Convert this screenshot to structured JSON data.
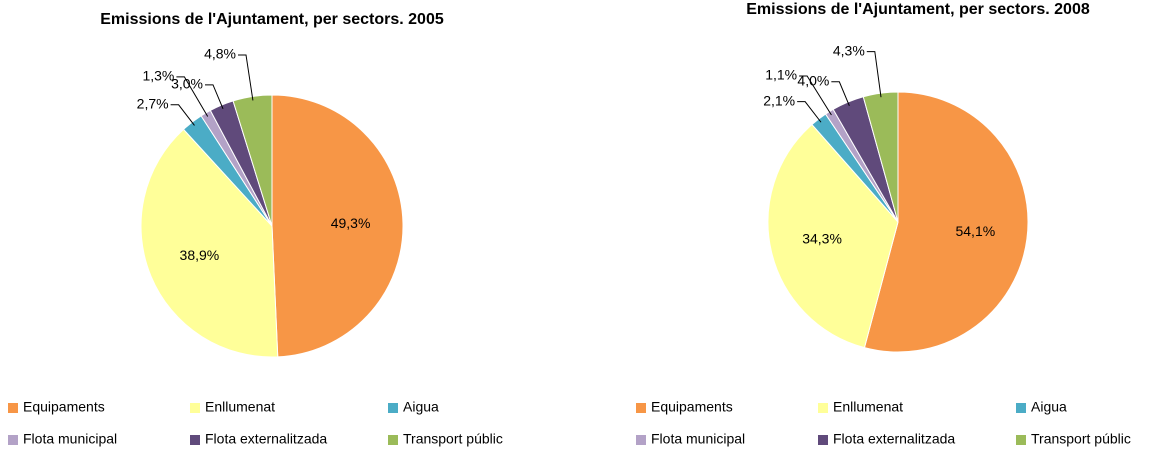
{
  "chart_data": [
    {
      "type": "pie",
      "title": "Emissions de l'Ajuntament, per sectors. 2005",
      "categories": [
        "Equipaments",
        "Enllumenat",
        "Aigua",
        "Flota municipal",
        "Flota externalitzada",
        "Transport públic"
      ],
      "values": [
        49.3,
        38.9,
        2.7,
        1.3,
        3.0,
        4.8
      ],
      "value_labels": [
        "49,3%",
        "38,9%",
        "2,7%",
        "1,3%",
        "3,0%",
        "4,8%"
      ],
      "colors": [
        "#f79646",
        "#ffff99",
        "#4bacc6",
        "#b3a2c7",
        "#604a7b",
        "#9bbb59"
      ]
    },
    {
      "type": "pie",
      "title": "Emissions de l'Ajuntament, per sectors. 2008",
      "categories": [
        "Equipaments",
        "Enllumenat",
        "Aigua",
        "Flota municipal",
        "Flota externalitzada",
        "Transport públic"
      ],
      "values": [
        54.1,
        34.3,
        2.1,
        1.1,
        4.0,
        4.3
      ],
      "value_labels": [
        "54,1%",
        "34,3%",
        "2,1%",
        "1,1%",
        "4,0%",
        "4,3%"
      ],
      "colors": [
        "#f79646",
        "#ffff99",
        "#4bacc6",
        "#b3a2c7",
        "#604a7b",
        "#9bbb59"
      ]
    }
  ]
}
